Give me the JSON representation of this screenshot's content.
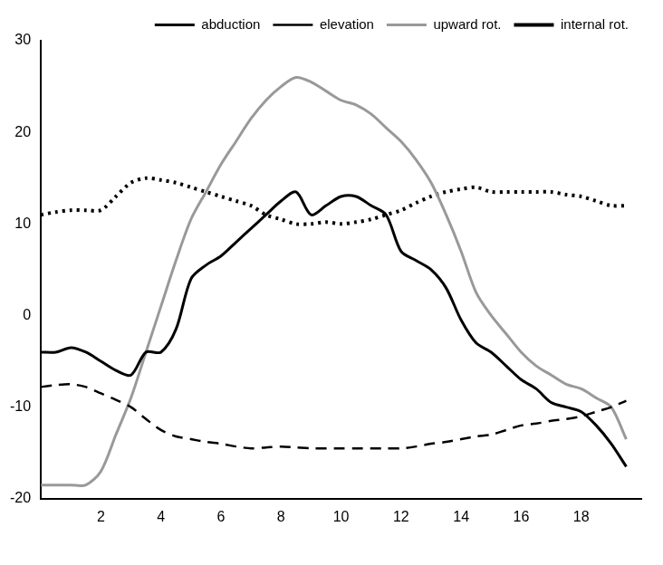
{
  "chart_data": {
    "type": "line",
    "x": [
      0,
      0.5,
      1,
      1.5,
      2,
      2.5,
      3,
      3.5,
      4,
      4.5,
      5,
      5.5,
      6,
      6.5,
      7,
      7.5,
      8,
      8.5,
      9,
      9.5,
      10,
      10.5,
      11,
      11.5,
      12,
      12.5,
      13,
      13.5,
      14,
      14.5,
      15,
      15.5,
      16,
      16.5,
      17,
      17.5,
      18,
      18.5,
      19,
      19.5
    ],
    "series": [
      {
        "name": "abduction",
        "color": "#000000",
        "line_style": "solid",
        "values": [
          -4,
          -4,
          -3.5,
          -4,
          -5,
          -6,
          -6.5,
          -4,
          -4,
          -1.5,
          4,
          5.5,
          6.5,
          8,
          9.5,
          11,
          12.5,
          13.5,
          11,
          12,
          13,
          13,
          12,
          11,
          7,
          6,
          5,
          3,
          -0.5,
          -3,
          -4,
          -5.5,
          -7,
          -8,
          -9.5,
          -10,
          -10.5,
          -12,
          -14,
          -16.5
        ]
      },
      {
        "name": "elevation",
        "color": "#000000",
        "line_style": "dashed",
        "values": [
          -7.8,
          -7.6,
          -7.5,
          -7.8,
          -8.5,
          -9.2,
          -10,
          -11.3,
          -12.5,
          -13.2,
          -13.5,
          -13.8,
          -14,
          -14.3,
          -14.5,
          -14.4,
          -14.3,
          -14.4,
          -14.5,
          -14.5,
          -14.5,
          -14.5,
          -14.5,
          -14.5,
          -14.5,
          -14.3,
          -14,
          -13.8,
          -13.5,
          -13.2,
          -13,
          -12.5,
          -12,
          -11.8,
          -11.5,
          -11.3,
          -11,
          -10.5,
          -10,
          -9.3
        ]
      },
      {
        "name": "upward rot.",
        "color": "#999999",
        "line_style": "solid",
        "values": [
          -18.5,
          -18.5,
          -18.5,
          -18.5,
          -17,
          -13,
          -9,
          -4,
          1,
          6,
          10.5,
          13.5,
          16.5,
          19,
          21.5,
          23.5,
          25,
          26,
          25.5,
          24.5,
          23.5,
          23,
          22,
          20.5,
          19,
          17,
          14.5,
          11,
          7,
          2.5,
          0,
          -2,
          -4,
          -5.5,
          -6.5,
          -7.5,
          -8,
          -9,
          -10,
          -13.5
        ]
      },
      {
        "name": "internal rot.",
        "color": "#000000",
        "line_style": "dotted",
        "values": [
          11,
          11.3,
          11.5,
          11.5,
          11.5,
          13,
          14.5,
          15,
          14.8,
          14.5,
          14,
          13.5,
          13,
          12.5,
          12,
          11,
          10.5,
          10,
          10,
          10.2,
          10,
          10.2,
          10.5,
          11,
          11.5,
          12.3,
          13,
          13.5,
          13.8,
          14,
          13.5,
          13.5,
          13.5,
          13.5,
          13.5,
          13.2,
          13,
          12.5,
          12,
          12
        ]
      }
    ],
    "xlim": [
      0,
      20
    ],
    "xticks": [
      2,
      4,
      6,
      8,
      10,
      12,
      14,
      16,
      18
    ],
    "ylim": [
      -20,
      30
    ],
    "yticks": [
      -20,
      -10,
      0,
      10,
      20,
      30
    ],
    "grid": false,
    "legend": "top-right"
  }
}
